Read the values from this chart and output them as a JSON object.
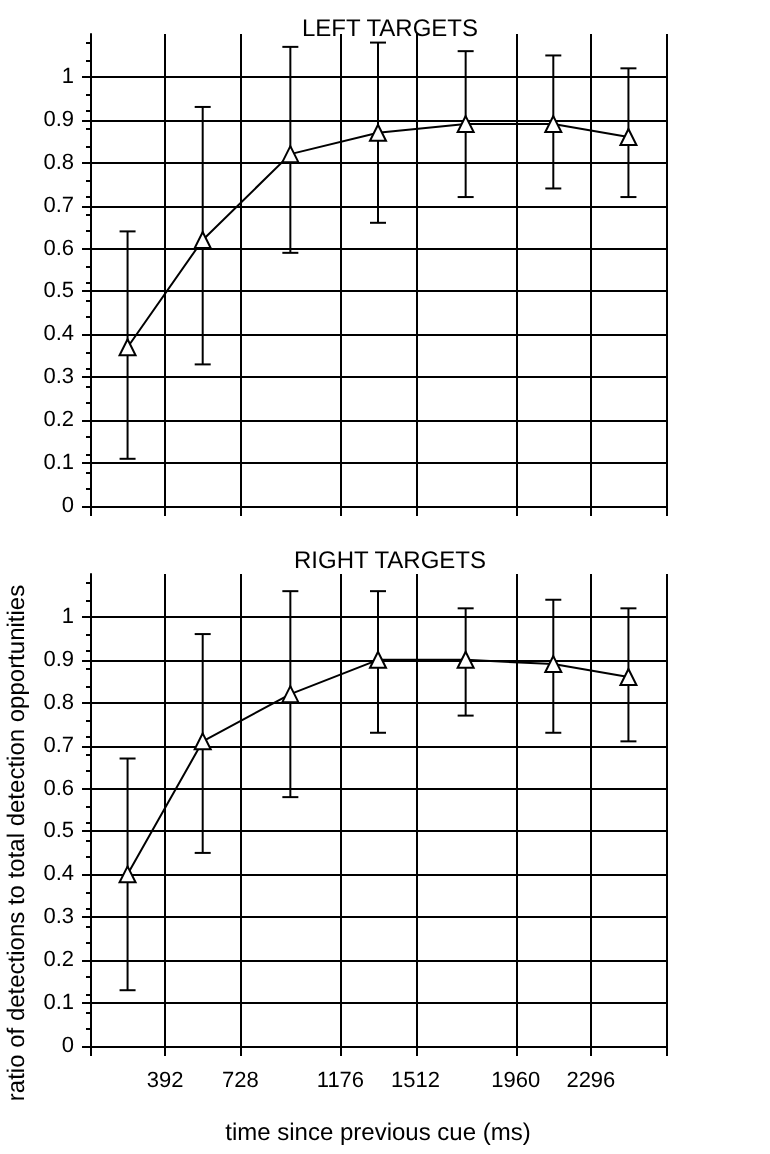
{
  "chart_data": [
    {
      "type": "line",
      "title": "LEFT TARGETS",
      "x": [
        224,
        560,
        952,
        1344,
        1736,
        2128,
        2464
      ],
      "series": [
        {
          "color": "#000000",
          "values": [
            0.37,
            0.62,
            0.82,
            0.87,
            0.89,
            0.89,
            0.86
          ],
          "errors": [
            [
              0.11,
              0.64
            ],
            [
              0.33,
              0.93
            ],
            [
              0.59,
              1.07
            ],
            [
              0.66,
              1.08
            ],
            [
              0.72,
              1.06
            ],
            [
              0.74,
              1.05
            ],
            [
              0.72,
              1.02
            ]
          ]
        }
      ],
      "xlim": [
        56,
        2632
      ],
      "xticks": [
        392,
        728,
        1176,
        1512,
        1960,
        2296
      ],
      "ylim": [
        0,
        1.1
      ],
      "yticks": [
        0,
        0.1,
        0.2,
        0.3,
        0.4,
        0.5,
        0.6,
        0.7,
        0.8,
        0.9,
        1
      ],
      "tick_labels": "y",
      "grid": true,
      "marker": "triangle",
      "line_style": "solid"
    },
    {
      "type": "line",
      "title": "RIGHT TARGETS",
      "xlabel": "time since previous cue (ms)",
      "ylabel": "ratio of detections to total detection opportunities",
      "x": [
        224,
        560,
        952,
        1344,
        1736,
        2128,
        2464
      ],
      "series": [
        {
          "color": "#000000",
          "values": [
            0.4,
            0.71,
            0.82,
            0.9,
            0.9,
            0.89,
            0.86
          ],
          "errors": [
            [
              0.13,
              0.67
            ],
            [
              0.45,
              0.96
            ],
            [
              0.58,
              1.06
            ],
            [
              0.73,
              1.06
            ],
            [
              0.77,
              1.02
            ],
            [
              0.73,
              1.04
            ],
            [
              0.71,
              1.02
            ]
          ]
        }
      ],
      "xlim": [
        56,
        2632
      ],
      "xticks": [
        392,
        728,
        1176,
        1512,
        1960,
        2296
      ],
      "ylim": [
        0,
        1.1
      ],
      "yticks": [
        0,
        0.1,
        0.2,
        0.3,
        0.4,
        0.5,
        0.6,
        0.7,
        0.8,
        0.9,
        1
      ],
      "grid": true,
      "marker": "triangle",
      "line_style": "solid"
    }
  ]
}
